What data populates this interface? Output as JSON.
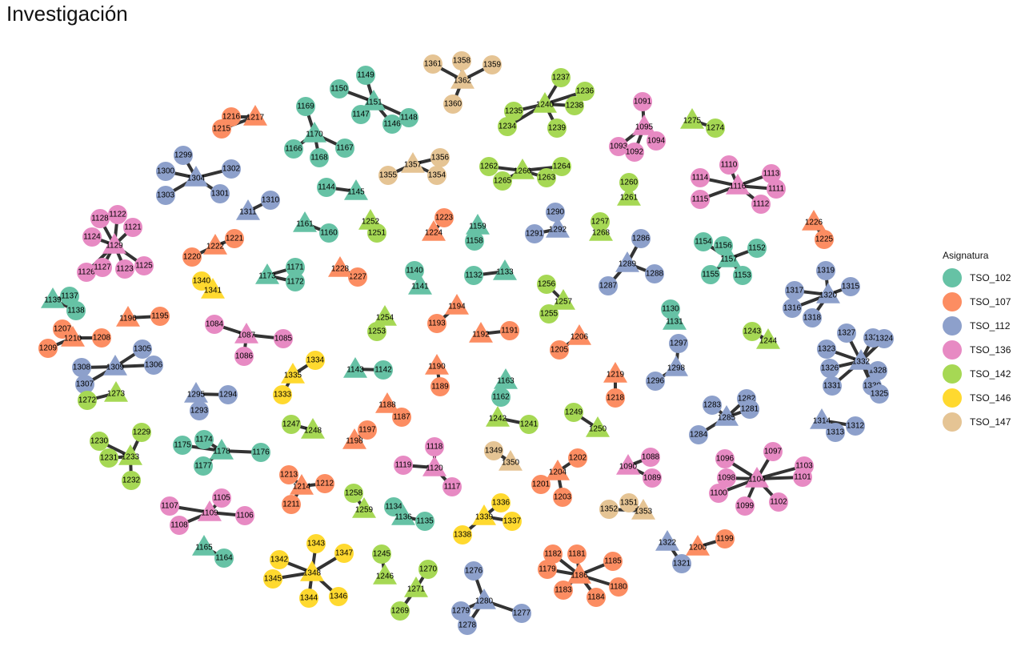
{
  "title": "Investigación",
  "legend": {
    "title": "Asignatura",
    "items": [
      {
        "label": "TSO_102",
        "color": "#66c2a5"
      },
      {
        "label": "TSO_107",
        "color": "#fc8d62"
      },
      {
        "label": "TSO_112",
        "color": "#8da0cb"
      },
      {
        "label": "TSO_136",
        "color": "#e78ac3"
      },
      {
        "label": "TSO_142",
        "color": "#a6d854"
      },
      {
        "label": "TSO_146",
        "color": "#ffd92f"
      },
      {
        "label": "TSO_147",
        "color": "#e5c494"
      }
    ]
  },
  "groups": [
    {
      "hub": "1362",
      "c": 6,
      "leaves": [
        "1361",
        "1358",
        "1359",
        "1360"
      ]
    },
    {
      "hub": "1151",
      "c": 0,
      "leaves": [
        "1150",
        "1149",
        "1147",
        "1146",
        "1148"
      ]
    },
    {
      "hub": "1170",
      "c": 0,
      "leaves": [
        "1169",
        "1166",
        "1168",
        "1167"
      ]
    },
    {
      "hub": "1217",
      "c": 1,
      "leaves": [
        "1216",
        "1215"
      ]
    },
    {
      "hub": "1240",
      "c": 4,
      "leaves": [
        "1237",
        "1236",
        "1235",
        "1238",
        "1234",
        "1239"
      ]
    },
    {
      "hub": "1095",
      "c": 3,
      "leaves": [
        "1091",
        "1093",
        "1092",
        "1094"
      ]
    },
    {
      "hub": "1275",
      "c": 4,
      "leaves": [
        "1274"
      ]
    },
    {
      "hub": "1304",
      "c": 2,
      "leaves": [
        "1299",
        "1300",
        "1302",
        "1303",
        "1301"
      ]
    },
    {
      "hub": "1357",
      "c": 6,
      "leaves": [
        "1356",
        "1355",
        "1354"
      ]
    },
    {
      "hub": "1266",
      "c": 4,
      "leaves": [
        "1262",
        "1264",
        "1265",
        "1263"
      ]
    },
    {
      "hub": "1116",
      "c": 3,
      "leaves": [
        "1110",
        "1114",
        "1113",
        "1111",
        "1115",
        "1112"
      ]
    },
    {
      "hub": "1145",
      "c": 0,
      "leaves": [
        "1144"
      ]
    },
    {
      "hub": "1261",
      "c": 4,
      "leaves": [
        "1260"
      ]
    },
    {
      "hub": "1311",
      "c": 2,
      "leaves": [
        "1310"
      ]
    },
    {
      "hub": "1292",
      "c": 2,
      "leaves": [
        "1290",
        "1291"
      ]
    },
    {
      "hub": "1268",
      "c": 4,
      "leaves": [
        "1267"
      ]
    },
    {
      "hub": "1226",
      "c": 1,
      "leaves": [
        "1225"
      ]
    },
    {
      "hub": "1129",
      "c": 3,
      "leaves": [
        "1128",
        "1122",
        "1121",
        "1124",
        "1126",
        "1127",
        "1123",
        "1125"
      ]
    },
    {
      "hub": "1161",
      "c": 0,
      "leaves": [
        "1160"
      ]
    },
    {
      "hub": "1252",
      "c": 4,
      "leaves": [
        "1251"
      ]
    },
    {
      "hub": "1224",
      "c": 1,
      "leaves": [
        "1223"
      ]
    },
    {
      "hub": "1159",
      "c": 0,
      "leaves": [
        "1158"
      ]
    },
    {
      "hub": "1157",
      "c": 0,
      "leaves": [
        "1154",
        "1156",
        "1152",
        "1155",
        "1153"
      ]
    },
    {
      "hub": "1222",
      "c": 1,
      "leaves": [
        "1221",
        "1220"
      ]
    },
    {
      "hub": "1289",
      "c": 2,
      "leaves": [
        "1286",
        "1288",
        "1287"
      ]
    },
    {
      "hub": "1320",
      "c": 2,
      "leaves": [
        "1319",
        "1317",
        "1315",
        "1316",
        "1318"
      ]
    },
    {
      "hub": "1173",
      "c": 0,
      "leaves": [
        "1171",
        "1172"
      ]
    },
    {
      "hub": "1228",
      "c": 1,
      "leaves": [
        "1227"
      ]
    },
    {
      "hub": "1141",
      "c": 0,
      "leaves": [
        "1140"
      ]
    },
    {
      "hub": "1133",
      "c": 0,
      "leaves": [
        "1132"
      ]
    },
    {
      "hub": "1341",
      "c": 5,
      "leaves": [
        "1340"
      ]
    },
    {
      "hub": "1257",
      "c": 4,
      "leaves": [
        "1256",
        "1255"
      ]
    },
    {
      "hub": "1139",
      "c": 0,
      "leaves": [
        "1137",
        "1138"
      ]
    },
    {
      "hub": "1131",
      "c": 0,
      "leaves": [
        "1130"
      ]
    },
    {
      "hub": "1196",
      "c": 1,
      "leaves": [
        "1195"
      ]
    },
    {
      "hub": "1194",
      "c": 1,
      "leaves": [
        "1193"
      ]
    },
    {
      "hub": "1254",
      "c": 4,
      "leaves": [
        "1253"
      ]
    },
    {
      "hub": "1210",
      "c": 1,
      "leaves": [
        "1207",
        "1209",
        "1208"
      ]
    },
    {
      "hub": "1087",
      "c": 3,
      "leaves": [
        "1084",
        "1085",
        "1086"
      ]
    },
    {
      "hub": "1192",
      "c": 1,
      "leaves": [
        "1191"
      ]
    },
    {
      "hub": "1206",
      "c": 1,
      "leaves": [
        "1205"
      ]
    },
    {
      "hub": "1244",
      "c": 4,
      "leaves": [
        "1243"
      ]
    },
    {
      "hub": "1332",
      "c": 2,
      "leaves": [
        "1327",
        "1329",
        "1324",
        "1323",
        "1326",
        "1328",
        "1331",
        "1330",
        "1325"
      ]
    },
    {
      "hub": "1309",
      "c": 2,
      "leaves": [
        "1305",
        "1308",
        "1306",
        "1307"
      ]
    },
    {
      "hub": "1335",
      "c": 5,
      "leaves": [
        "1334",
        "1333"
      ]
    },
    {
      "hub": "1143",
      "c": 0,
      "leaves": [
        "1142"
      ]
    },
    {
      "hub": "1190",
      "c": 1,
      "leaves": [
        "1189"
      ]
    },
    {
      "hub": "1298",
      "c": 2,
      "leaves": [
        "1297",
        "1296"
      ]
    },
    {
      "hub": "1163",
      "c": 0,
      "leaves": [
        "1162"
      ]
    },
    {
      "hub": "1219",
      "c": 1,
      "leaves": [
        "1218"
      ]
    },
    {
      "hub": "1273",
      "c": 4,
      "leaves": [
        "1272"
      ]
    },
    {
      "hub": "1295",
      "c": 2,
      "leaves": [
        "1294",
        "1293"
      ]
    },
    {
      "hub": "1188",
      "c": 1,
      "leaves": [
        "1187"
      ]
    },
    {
      "hub": "1285",
      "c": 2,
      "leaves": [
        "1283",
        "1282",
        "1281",
        "1284"
      ]
    },
    {
      "hub": "1242",
      "c": 4,
      "leaves": [
        "1241"
      ]
    },
    {
      "hub": "1250",
      "c": 4,
      "leaves": [
        "1249"
      ]
    },
    {
      "hub": "1314",
      "c": 2,
      "leaves": [
        "1312",
        "1313"
      ]
    },
    {
      "hub": "1248",
      "c": 4,
      "leaves": [
        "1247"
      ]
    },
    {
      "hub": "1198",
      "c": 1,
      "leaves": [
        "1197"
      ]
    },
    {
      "hub": "1233",
      "c": 4,
      "leaves": [
        "1229",
        "1230",
        "1231",
        "1232"
      ]
    },
    {
      "hub": "1178",
      "c": 0,
      "leaves": [
        "1174",
        "1175",
        "1176",
        "1177"
      ]
    },
    {
      "hub": "1120",
      "c": 3,
      "leaves": [
        "1118",
        "1119",
        "1117"
      ]
    },
    {
      "hub": "1350",
      "c": 6,
      "leaves": [
        "1349"
      ]
    },
    {
      "hub": "1204",
      "c": 1,
      "leaves": [
        "1202",
        "1201",
        "1203"
      ]
    },
    {
      "hub": "1090",
      "c": 3,
      "leaves": [
        "1088",
        "1089"
      ]
    },
    {
      "hub": "1104",
      "c": 3,
      "leaves": [
        "1096",
        "1097",
        "1098",
        "1103",
        "1101",
        "1100",
        "1099",
        "1102"
      ]
    },
    {
      "hub": "1214",
      "c": 1,
      "leaves": [
        "1213",
        "1212",
        "1211"
      ]
    },
    {
      "hub": "1259",
      "c": 4,
      "leaves": [
        "1258"
      ]
    },
    {
      "hub": "1136",
      "c": 0,
      "leaves": [
        "1134",
        "1135"
      ]
    },
    {
      "hub": "1339",
      "c": 5,
      "leaves": [
        "1336",
        "1337",
        "1338"
      ]
    },
    {
      "hub": "1353",
      "c": 6,
      "leaves": [
        "1352",
        "1351"
      ]
    },
    {
      "hub": "1109",
      "c": 3,
      "leaves": [
        "1105",
        "1107",
        "1108",
        "1106"
      ]
    },
    {
      "hub": "1165",
      "c": 0,
      "leaves": [
        "1164"
      ]
    },
    {
      "hub": "1348",
      "c": 5,
      "leaves": [
        "1343",
        "1347",
        "1342",
        "1345",
        "1344",
        "1346"
      ]
    },
    {
      "hub": "1246",
      "c": 4,
      "leaves": [
        "1245"
      ]
    },
    {
      "hub": "1271",
      "c": 4,
      "leaves": [
        "1270",
        "1269"
      ]
    },
    {
      "hub": "1280",
      "c": 2,
      "leaves": [
        "1276",
        "1279",
        "1278",
        "1277"
      ]
    },
    {
      "hub": "1186",
      "c": 1,
      "leaves": [
        "1182",
        "1181",
        "1185",
        "1179",
        "1183",
        "1184",
        "1180"
      ]
    },
    {
      "hub": "1322",
      "c": 2,
      "leaves": [
        "1321"
      ]
    },
    {
      "hub": "1200",
      "c": 1,
      "leaves": [
        "1199"
      ]
    }
  ]
}
